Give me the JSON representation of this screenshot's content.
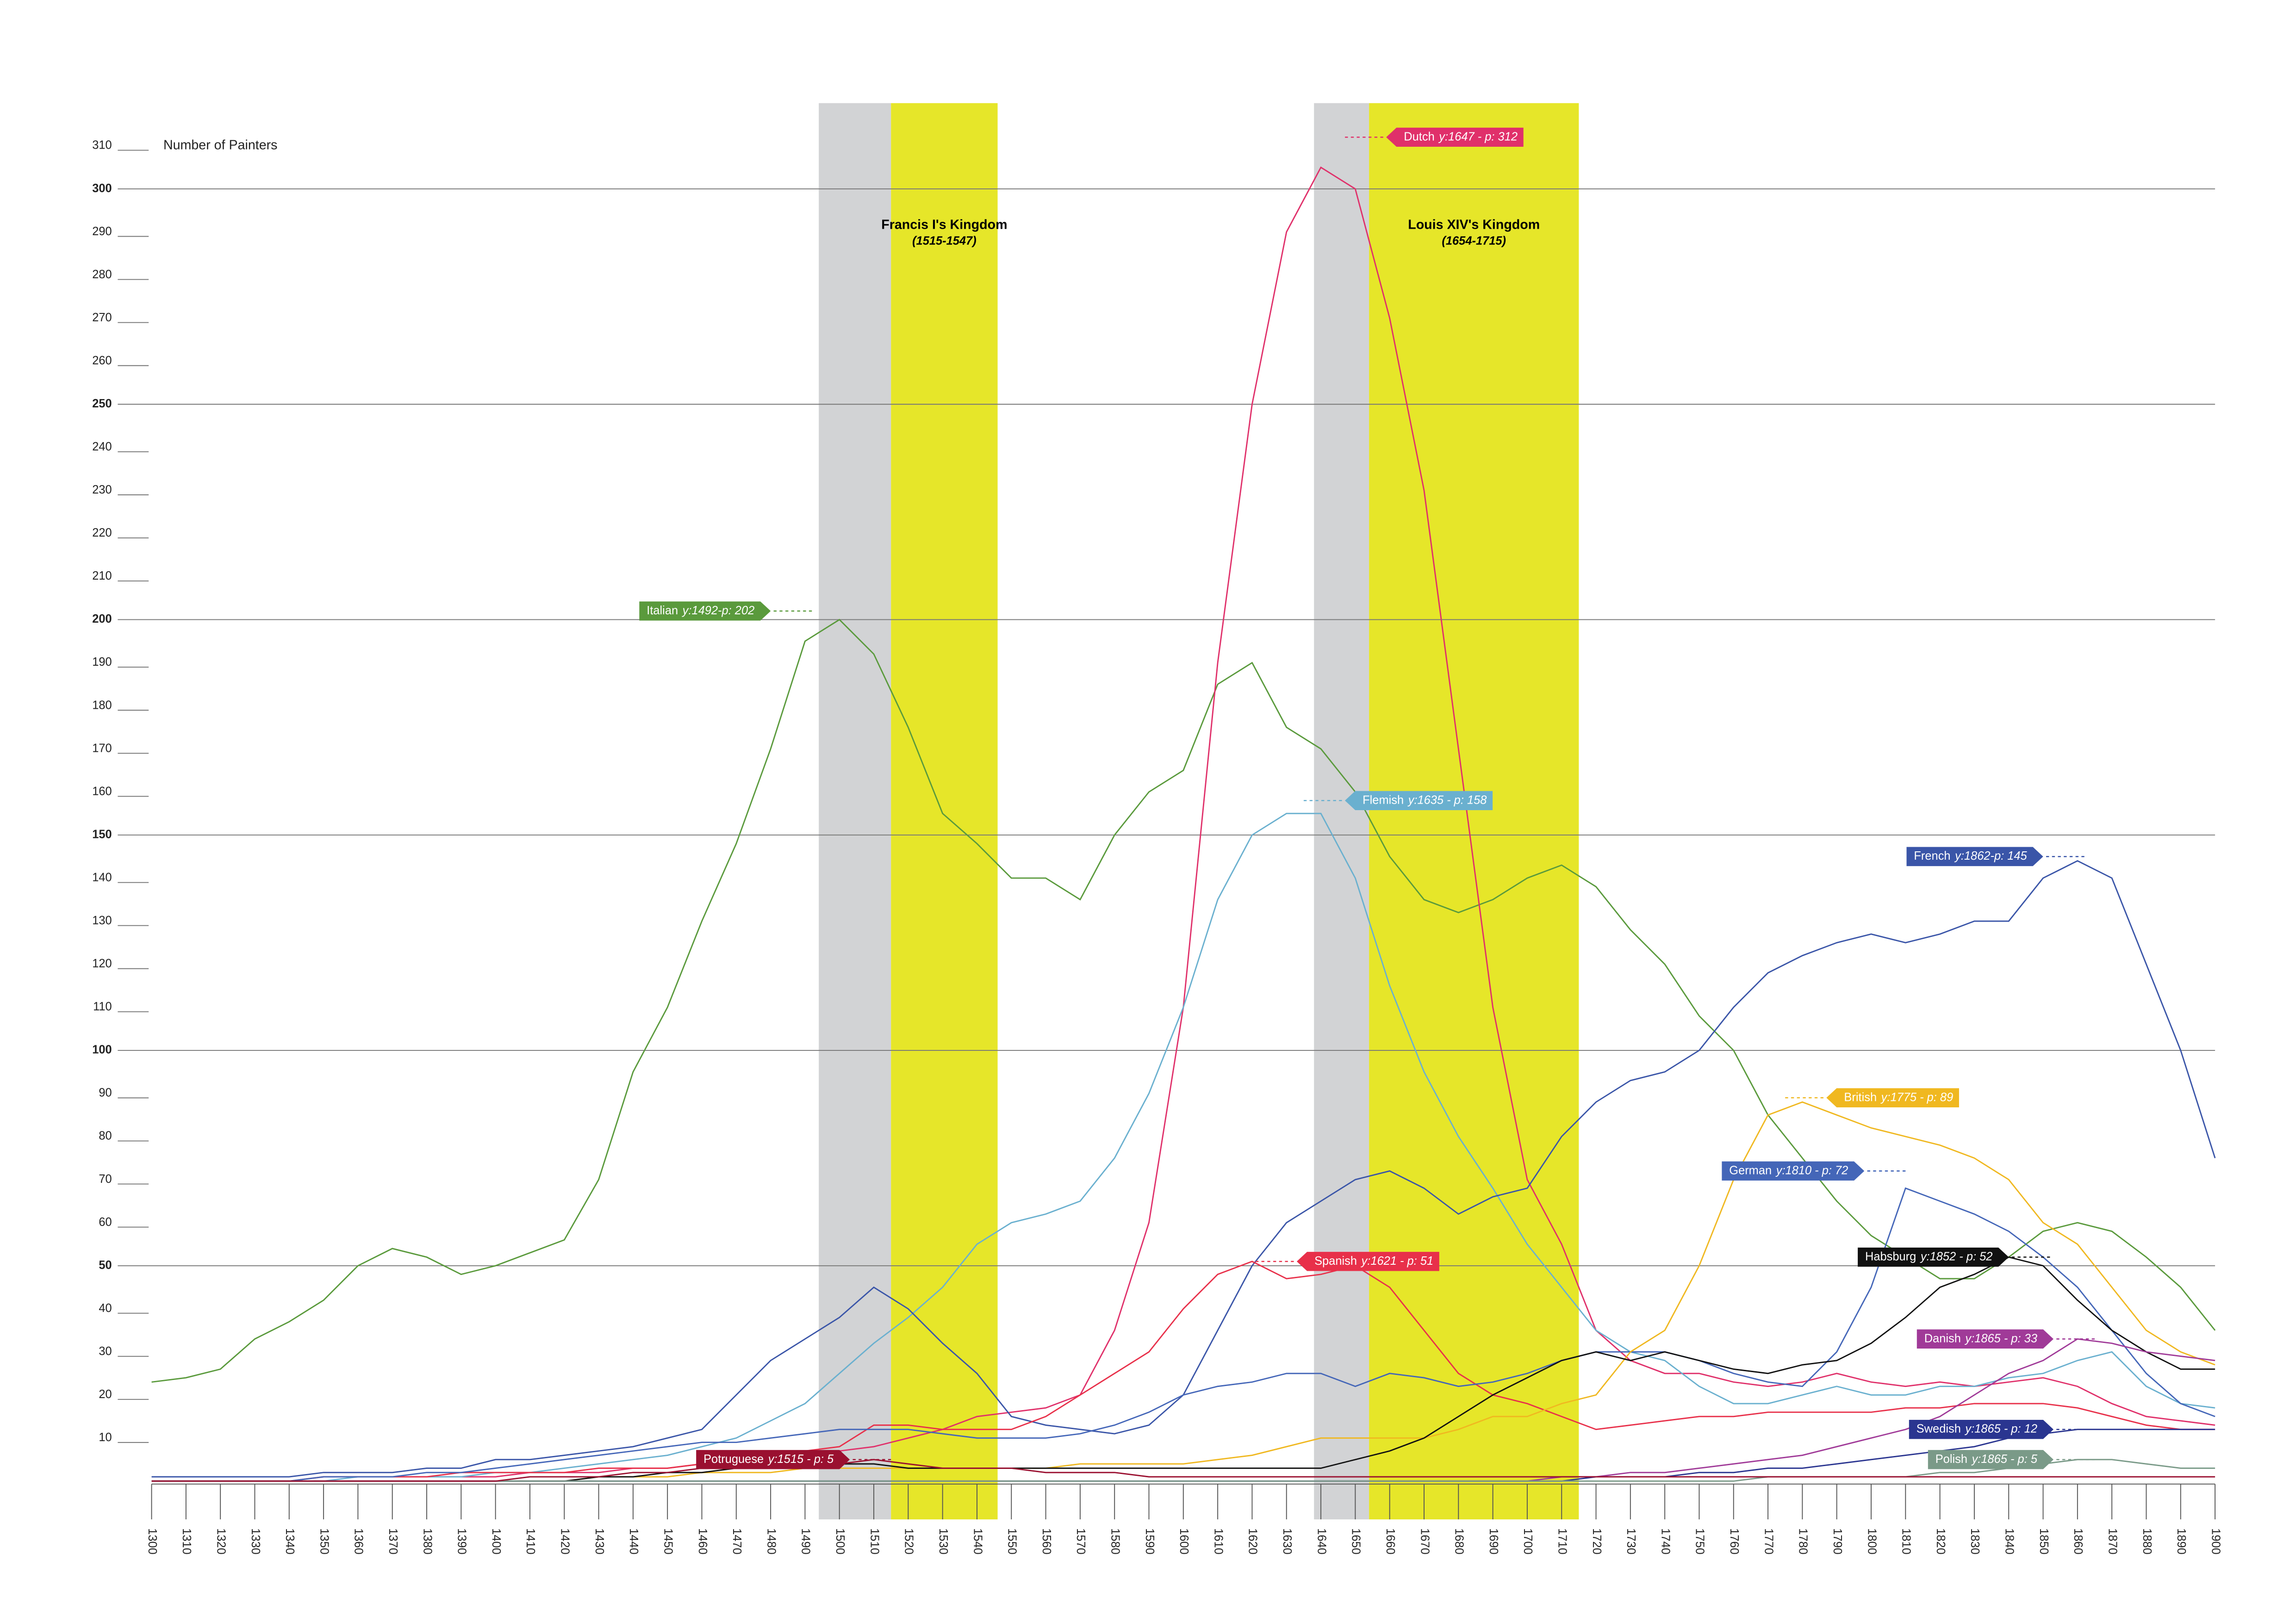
{
  "chart_data": {
    "type": "line",
    "y_label": "Number of Painters",
    "x": [
      1300,
      1310,
      1320,
      1330,
      1340,
      1350,
      1360,
      1370,
      1380,
      1390,
      1400,
      1410,
      1420,
      1430,
      1440,
      1450,
      1460,
      1470,
      1480,
      1490,
      1500,
      1510,
      1520,
      1530,
      1540,
      1550,
      1560,
      1570,
      1580,
      1590,
      1600,
      1610,
      1620,
      1630,
      1640,
      1650,
      1660,
      1670,
      1680,
      1690,
      1700,
      1710,
      1720,
      1730,
      1740,
      1750,
      1760,
      1770,
      1780,
      1790,
      1800,
      1810,
      1820,
      1830,
      1840,
      1850,
      1860,
      1870,
      1880,
      1890,
      1900
    ],
    "xlim": [
      1300,
      1900
    ],
    "xticks": [
      1300,
      1310,
      1320,
      1330,
      1340,
      1350,
      1360,
      1370,
      1380,
      1390,
      1400,
      1410,
      1420,
      1430,
      1440,
      1450,
      1460,
      1470,
      1480,
      1490,
      1500,
      1510,
      1520,
      1530,
      1540,
      1550,
      1560,
      1570,
      1580,
      1590,
      1600,
      1610,
      1620,
      1630,
      1640,
      1650,
      1660,
      1670,
      1680,
      1690,
      1700,
      1710,
      1720,
      1730,
      1740,
      1750,
      1760,
      1770,
      1780,
      1790,
      1800,
      1810,
      1820,
      1830,
      1840,
      1850,
      1860,
      1870,
      1880,
      1890,
      1900
    ],
    "ylim": [
      0,
      310
    ],
    "yticks": [
      10,
      20,
      30,
      40,
      50,
      60,
      70,
      80,
      90,
      100,
      110,
      120,
      130,
      140,
      150,
      160,
      170,
      180,
      190,
      200,
      210,
      220,
      230,
      240,
      250,
      260,
      270,
      280,
      290,
      300,
      310
    ],
    "grid_every": 50,
    "highlights": [
      {
        "name": "Francis I's Kingdom",
        "years": "(1515-1547)",
        "start": 1494,
        "split": 1515,
        "end": 1546
      },
      {
        "name": "Louis XIV's Kingdom",
        "years": "(1654-1715)",
        "start": 1638,
        "split": 1654,
        "end": 1715
      }
    ],
    "series": [
      {
        "name": "Italian",
        "color": "#5a9a3c",
        "values": [
          23,
          24,
          26,
          33,
          37,
          42,
          50,
          54,
          52,
          48,
          50,
          53,
          56,
          70,
          95,
          110,
          130,
          148,
          170,
          195,
          200,
          192,
          175,
          155,
          148,
          140,
          140,
          135,
          150,
          160,
          165,
          185,
          190,
          175,
          170,
          160,
          145,
          135,
          132,
          135,
          140,
          143,
          138,
          128,
          120,
          108,
          100,
          85,
          75,
          65,
          57,
          52,
          47,
          47,
          52,
          58,
          60,
          58,
          52,
          45,
          35
        ],
        "peak": {
          "label": "y:1492-p: 202",
          "x": 1492,
          "y": 202,
          "side": "left"
        }
      },
      {
        "name": "Dutch",
        "color": "#e0306a",
        "values": [
          0,
          0,
          0,
          0,
          0,
          1,
          1,
          1,
          1,
          1,
          1,
          2,
          2,
          2,
          3,
          3,
          4,
          5,
          5,
          6,
          7,
          8,
          10,
          12,
          15,
          16,
          17,
          20,
          35,
          60,
          110,
          190,
          250,
          290,
          305,
          300,
          270,
          230,
          170,
          110,
          70,
          55,
          35,
          28,
          25,
          25,
          23,
          22,
          23,
          25,
          23,
          22,
          23,
          22,
          23,
          24,
          22,
          18,
          15,
          14,
          13
        ],
        "peak": {
          "label": "y:1647 - p: 312",
          "x": 1647,
          "y": 312,
          "side": "right"
        }
      },
      {
        "name": "Flemish",
        "color": "#6ab0cf",
        "values": [
          0,
          0,
          0,
          0,
          0,
          0,
          1,
          1,
          1,
          1,
          2,
          2,
          3,
          4,
          5,
          6,
          8,
          10,
          14,
          18,
          25,
          32,
          38,
          45,
          55,
          60,
          62,
          65,
          75,
          90,
          110,
          135,
          150,
          155,
          155,
          140,
          115,
          95,
          80,
          68,
          55,
          45,
          35,
          30,
          28,
          22,
          18,
          18,
          20,
          22,
          20,
          20,
          22,
          22,
          24,
          25,
          28,
          30,
          22,
          18,
          17
        ],
        "peak": {
          "label": "y:1635 - p: 158",
          "x": 1635,
          "y": 158,
          "side": "right"
        }
      },
      {
        "name": "French",
        "color": "#3a55a8",
        "values": [
          1,
          1,
          1,
          1,
          1,
          2,
          2,
          2,
          3,
          3,
          5,
          5,
          6,
          7,
          8,
          10,
          12,
          20,
          28,
          33,
          38,
          45,
          40,
          32,
          25,
          15,
          13,
          12,
          11,
          13,
          20,
          35,
          50,
          60,
          65,
          70,
          72,
          68,
          62,
          66,
          68,
          80,
          88,
          93,
          95,
          100,
          110,
          118,
          122,
          125,
          127,
          125,
          127,
          130,
          130,
          140,
          144,
          140,
          120,
          100,
          75
        ],
        "peak": {
          "label": "y:1862-p: 145",
          "x": 1862,
          "y": 145,
          "side": "left"
        }
      },
      {
        "name": "Spanish",
        "color": "#e8304a",
        "values": [
          0,
          0,
          0,
          0,
          0,
          1,
          1,
          1,
          1,
          2,
          2,
          2,
          2,
          3,
          3,
          3,
          4,
          5,
          6,
          7,
          8,
          13,
          13,
          12,
          12,
          12,
          15,
          20,
          25,
          30,
          40,
          48,
          51,
          47,
          48,
          50,
          45,
          35,
          25,
          20,
          18,
          15,
          12,
          13,
          14,
          15,
          15,
          16,
          16,
          16,
          16,
          17,
          17,
          18,
          18,
          18,
          17,
          15,
          13,
          12,
          12
        ],
        "peak": {
          "label": "y:1621 - p: 51",
          "x": 1621,
          "y": 51,
          "side": "right"
        }
      },
      {
        "name": "German",
        "color": "#4466b8",
        "values": [
          0,
          0,
          0,
          0,
          0,
          1,
          1,
          1,
          2,
          2,
          3,
          4,
          5,
          6,
          7,
          8,
          9,
          9,
          10,
          11,
          12,
          12,
          12,
          11,
          10,
          10,
          10,
          11,
          13,
          16,
          20,
          22,
          23,
          25,
          25,
          22,
          25,
          24,
          22,
          23,
          25,
          28,
          30,
          30,
          30,
          28,
          25,
          23,
          22,
          30,
          45,
          68,
          65,
          62,
          58,
          52,
          45,
          35,
          25,
          18,
          15
        ],
        "peak": {
          "label": "y:1810 - p: 72",
          "x": 1810,
          "y": 72,
          "side": "left"
        }
      },
      {
        "name": "British",
        "color": "#f0b820",
        "values": [
          0,
          0,
          0,
          0,
          0,
          0,
          0,
          0,
          0,
          0,
          0,
          0,
          0,
          1,
          1,
          1,
          2,
          2,
          2,
          3,
          3,
          3,
          3,
          3,
          3,
          3,
          3,
          4,
          4,
          4,
          4,
          5,
          6,
          8,
          10,
          10,
          10,
          10,
          12,
          15,
          15,
          18,
          20,
          30,
          35,
          50,
          70,
          85,
          88,
          85,
          82,
          80,
          78,
          75,
          70,
          60,
          55,
          45,
          35,
          30,
          27
        ],
        "peak": {
          "label": "y:1775 - p: 89",
          "x": 1775,
          "y": 89,
          "side": "right"
        }
      },
      {
        "name": "Habsburg",
        "color": "#111111",
        "values": [
          0,
          0,
          0,
          0,
          0,
          0,
          0,
          0,
          0,
          0,
          0,
          0,
          0,
          1,
          1,
          2,
          2,
          3,
          3,
          4,
          4,
          4,
          3,
          3,
          3,
          3,
          3,
          3,
          3,
          3,
          3,
          3,
          3,
          3,
          3,
          5,
          7,
          10,
          15,
          20,
          24,
          28,
          30,
          28,
          30,
          28,
          26,
          25,
          27,
          28,
          32,
          38,
          45,
          48,
          52,
          50,
          42,
          35,
          30,
          26,
          26
        ],
        "peak": {
          "label": "y:1852 - p: 52",
          "x": 1852,
          "y": 52,
          "side": "left"
        }
      },
      {
        "name": "Danish",
        "color": "#a03a98",
        "values": [
          0,
          0,
          0,
          0,
          0,
          0,
          0,
          0,
          0,
          0,
          0,
          0,
          0,
          0,
          0,
          0,
          0,
          0,
          0,
          0,
          0,
          0,
          0,
          0,
          0,
          0,
          0,
          0,
          0,
          0,
          0,
          0,
          0,
          0,
          0,
          0,
          0,
          0,
          0,
          0,
          0,
          1,
          1,
          2,
          2,
          3,
          4,
          5,
          6,
          8,
          10,
          12,
          15,
          20,
          25,
          28,
          33,
          32,
          30,
          29,
          28
        ],
        "peak": {
          "label": "y:1865 - p: 33",
          "x": 1865,
          "y": 33,
          "side": "left"
        }
      },
      {
        "name": "Swedish",
        "color": "#2a3590",
        "values": [
          0,
          0,
          0,
          0,
          0,
          0,
          0,
          0,
          0,
          0,
          0,
          0,
          0,
          0,
          0,
          0,
          0,
          0,
          0,
          0,
          0,
          0,
          0,
          0,
          0,
          0,
          0,
          0,
          0,
          0,
          0,
          0,
          0,
          0,
          0,
          0,
          0,
          0,
          0,
          0,
          0,
          0,
          1,
          1,
          1,
          2,
          2,
          3,
          3,
          4,
          5,
          6,
          7,
          8,
          10,
          11,
          12,
          12,
          12,
          12,
          12
        ],
        "peak": {
          "label": "y:1865 - p: 12",
          "x": 1865,
          "y": 12,
          "side": "left"
        }
      },
      {
        "name": "Polish",
        "color": "#7a9a88",
        "values": [
          0,
          0,
          0,
          0,
          0,
          0,
          0,
          0,
          0,
          0,
          0,
          0,
          0,
          0,
          0,
          0,
          0,
          0,
          0,
          0,
          0,
          0,
          0,
          0,
          0,
          0,
          0,
          0,
          0,
          0,
          0,
          0,
          0,
          0,
          0,
          0,
          0,
          0,
          0,
          0,
          0,
          0,
          0,
          0,
          0,
          0,
          0,
          1,
          1,
          1,
          1,
          1,
          2,
          2,
          3,
          4,
          5,
          5,
          4,
          3,
          3
        ],
        "peak": {
          "label": "y:1865 - p: 5",
          "x": 1865,
          "y": 5,
          "side": "left"
        }
      },
      {
        "name": "Potruguese",
        "color": "#9a1030",
        "values": [
          0,
          0,
          0,
          0,
          0,
          0,
          0,
          0,
          0,
          0,
          0,
          1,
          1,
          1,
          2,
          2,
          3,
          3,
          4,
          4,
          4,
          5,
          4,
          3,
          3,
          3,
          2,
          2,
          2,
          1,
          1,
          1,
          1,
          1,
          1,
          1,
          1,
          1,
          1,
          1,
          1,
          1,
          1,
          1,
          1,
          1,
          1,
          1,
          1,
          1,
          1,
          1,
          1,
          1,
          1,
          1,
          1,
          1,
          1,
          1,
          1
        ],
        "peak": {
          "label": "y:1515 - p: 5",
          "x": 1515,
          "y": 5,
          "side": "left"
        }
      }
    ]
  }
}
